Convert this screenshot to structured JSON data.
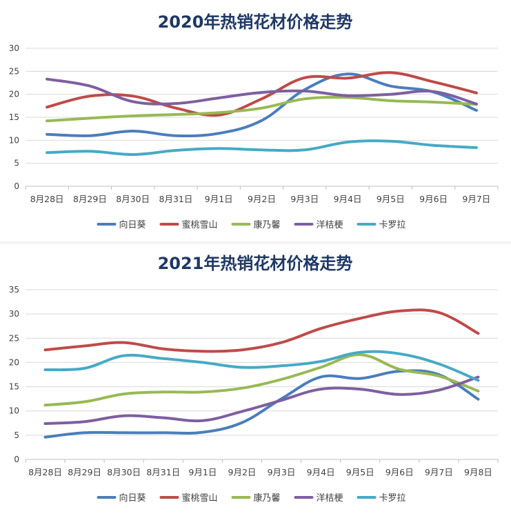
{
  "chart_data": [
    {
      "type": "line",
      "title": "2020年热销花材价格走势",
      "categories": [
        "8月28日",
        "8月29日",
        "8月30日",
        "8月31日",
        "9月1日",
        "9月2日",
        "9月3日",
        "9月4日",
        "9月5日",
        "9月6日",
        "9月7日"
      ],
      "ylim": [
        0,
        30
      ],
      "yticks": [
        0,
        5,
        10,
        15,
        20,
        25,
        30
      ],
      "grid": true,
      "legend_position": "bottom",
      "series": [
        {
          "name": "向日葵",
          "color": "#4a7ebb",
          "values": [
            11.3,
            11.0,
            12.0,
            11.0,
            11.5,
            14.3,
            21.0,
            24.4,
            21.8,
            20.5,
            16.5
          ]
        },
        {
          "name": "蜜桃雪山",
          "color": "#be4b48",
          "values": [
            17.2,
            19.6,
            19.6,
            17.0,
            15.5,
            19.0,
            23.6,
            23.5,
            24.7,
            22.7,
            20.3
          ]
        },
        {
          "name": "康乃馨",
          "color": "#98b954",
          "values": [
            14.2,
            14.8,
            15.3,
            15.6,
            16.0,
            17.0,
            19.0,
            19.3,
            18.6,
            18.3,
            17.8
          ]
        },
        {
          "name": "洋桔梗",
          "color": "#7d5fa0",
          "values": [
            23.3,
            21.8,
            18.4,
            18.0,
            19.2,
            20.4,
            20.7,
            19.7,
            20.0,
            20.6,
            17.9
          ]
        },
        {
          "name": "卡罗拉",
          "color": "#46aac5",
          "values": [
            7.3,
            7.6,
            6.9,
            7.8,
            8.2,
            7.9,
            7.9,
            9.6,
            9.8,
            8.9,
            8.4
          ]
        }
      ]
    },
    {
      "type": "line",
      "title": "2021年热销花材价格走势",
      "categories": [
        "8月28日",
        "8月29日",
        "8月30日",
        "8月31日",
        "9月1日",
        "9月2日",
        "9月3日",
        "9月4日",
        "9月5日",
        "9月6日",
        "9月7日",
        "9月8日"
      ],
      "ylim": [
        0,
        35
      ],
      "yticks": [
        0,
        5,
        10,
        15,
        20,
        25,
        30,
        35
      ],
      "grid": true,
      "legend_position": "bottom",
      "series": [
        {
          "name": "向日葵",
          "color": "#4a7ebb",
          "values": [
            4.6,
            5.5,
            5.5,
            5.5,
            5.6,
            7.6,
            12.5,
            17.0,
            16.7,
            18.2,
            17.5,
            12.4
          ]
        },
        {
          "name": "蜜桃雪山",
          "color": "#be4b48",
          "values": [
            22.6,
            23.4,
            24.1,
            22.8,
            22.3,
            22.6,
            24.1,
            27.0,
            29.1,
            30.6,
            30.3,
            26.0
          ]
        },
        {
          "name": "康乃馨",
          "color": "#98b954",
          "values": [
            11.2,
            11.9,
            13.5,
            13.9,
            13.9,
            14.7,
            16.5,
            19.0,
            21.6,
            18.6,
            17.2,
            14.1
          ]
        },
        {
          "name": "洋桔梗",
          "color": "#7d5fa0",
          "values": [
            7.4,
            7.8,
            9.0,
            8.6,
            8.0,
            9.9,
            12.2,
            14.5,
            14.5,
            13.4,
            14.3,
            17.0
          ]
        },
        {
          "name": "卡罗拉",
          "color": "#46aac5",
          "values": [
            18.5,
            18.8,
            21.4,
            20.8,
            20.0,
            19.0,
            19.3,
            20.2,
            22.1,
            21.8,
            19.7,
            16.3
          ]
        }
      ]
    }
  ]
}
